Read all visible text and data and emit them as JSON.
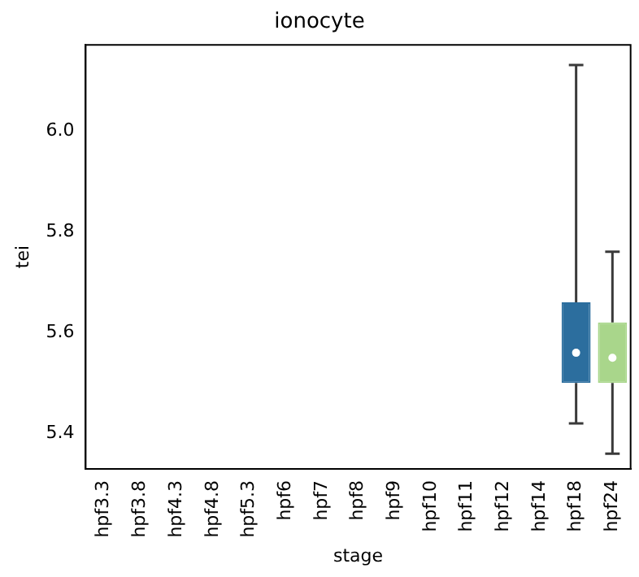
{
  "chart_data": {
    "type": "box",
    "title": "ionocyte",
    "xlabel": "stage",
    "ylabel": "tei",
    "categories": [
      "hpf3.3",
      "hpf3.8",
      "hpf4.3",
      "hpf4.8",
      "hpf5.3",
      "hpf6",
      "hpf7",
      "hpf8",
      "hpf9",
      "hpf10",
      "hpf11",
      "hpf12",
      "hpf14",
      "hpf18",
      "hpf24"
    ],
    "boxes": [
      null,
      null,
      null,
      null,
      null,
      null,
      null,
      null,
      null,
      null,
      null,
      null,
      null,
      {
        "low": 5.42,
        "q1": 5.5,
        "median": 5.56,
        "q3": 5.66,
        "high": 6.13
      },
      {
        "low": 5.36,
        "q1": 5.5,
        "median": 5.55,
        "q3": 5.62,
        "high": 5.76
      }
    ],
    "colors": [
      "#2c6e9e",
      "#2c6e9e",
      "#2c6e9e",
      "#2c6e9e",
      "#2c6e9e",
      "#2c6e9e",
      "#2c6e9e",
      "#2c6e9e",
      "#2c6e9e",
      "#2c6e9e",
      "#2c6e9e",
      "#2c6e9e",
      "#2c6e9e",
      "#2c6e9e",
      "#a9d68b"
    ],
    "ylim": [
      5.33,
      6.17
    ],
    "yticks": [
      5.4,
      5.6,
      5.8,
      {
        "value": 6,
        "label": "6.0"
      }
    ],
    "grid": false,
    "legend": false
  }
}
